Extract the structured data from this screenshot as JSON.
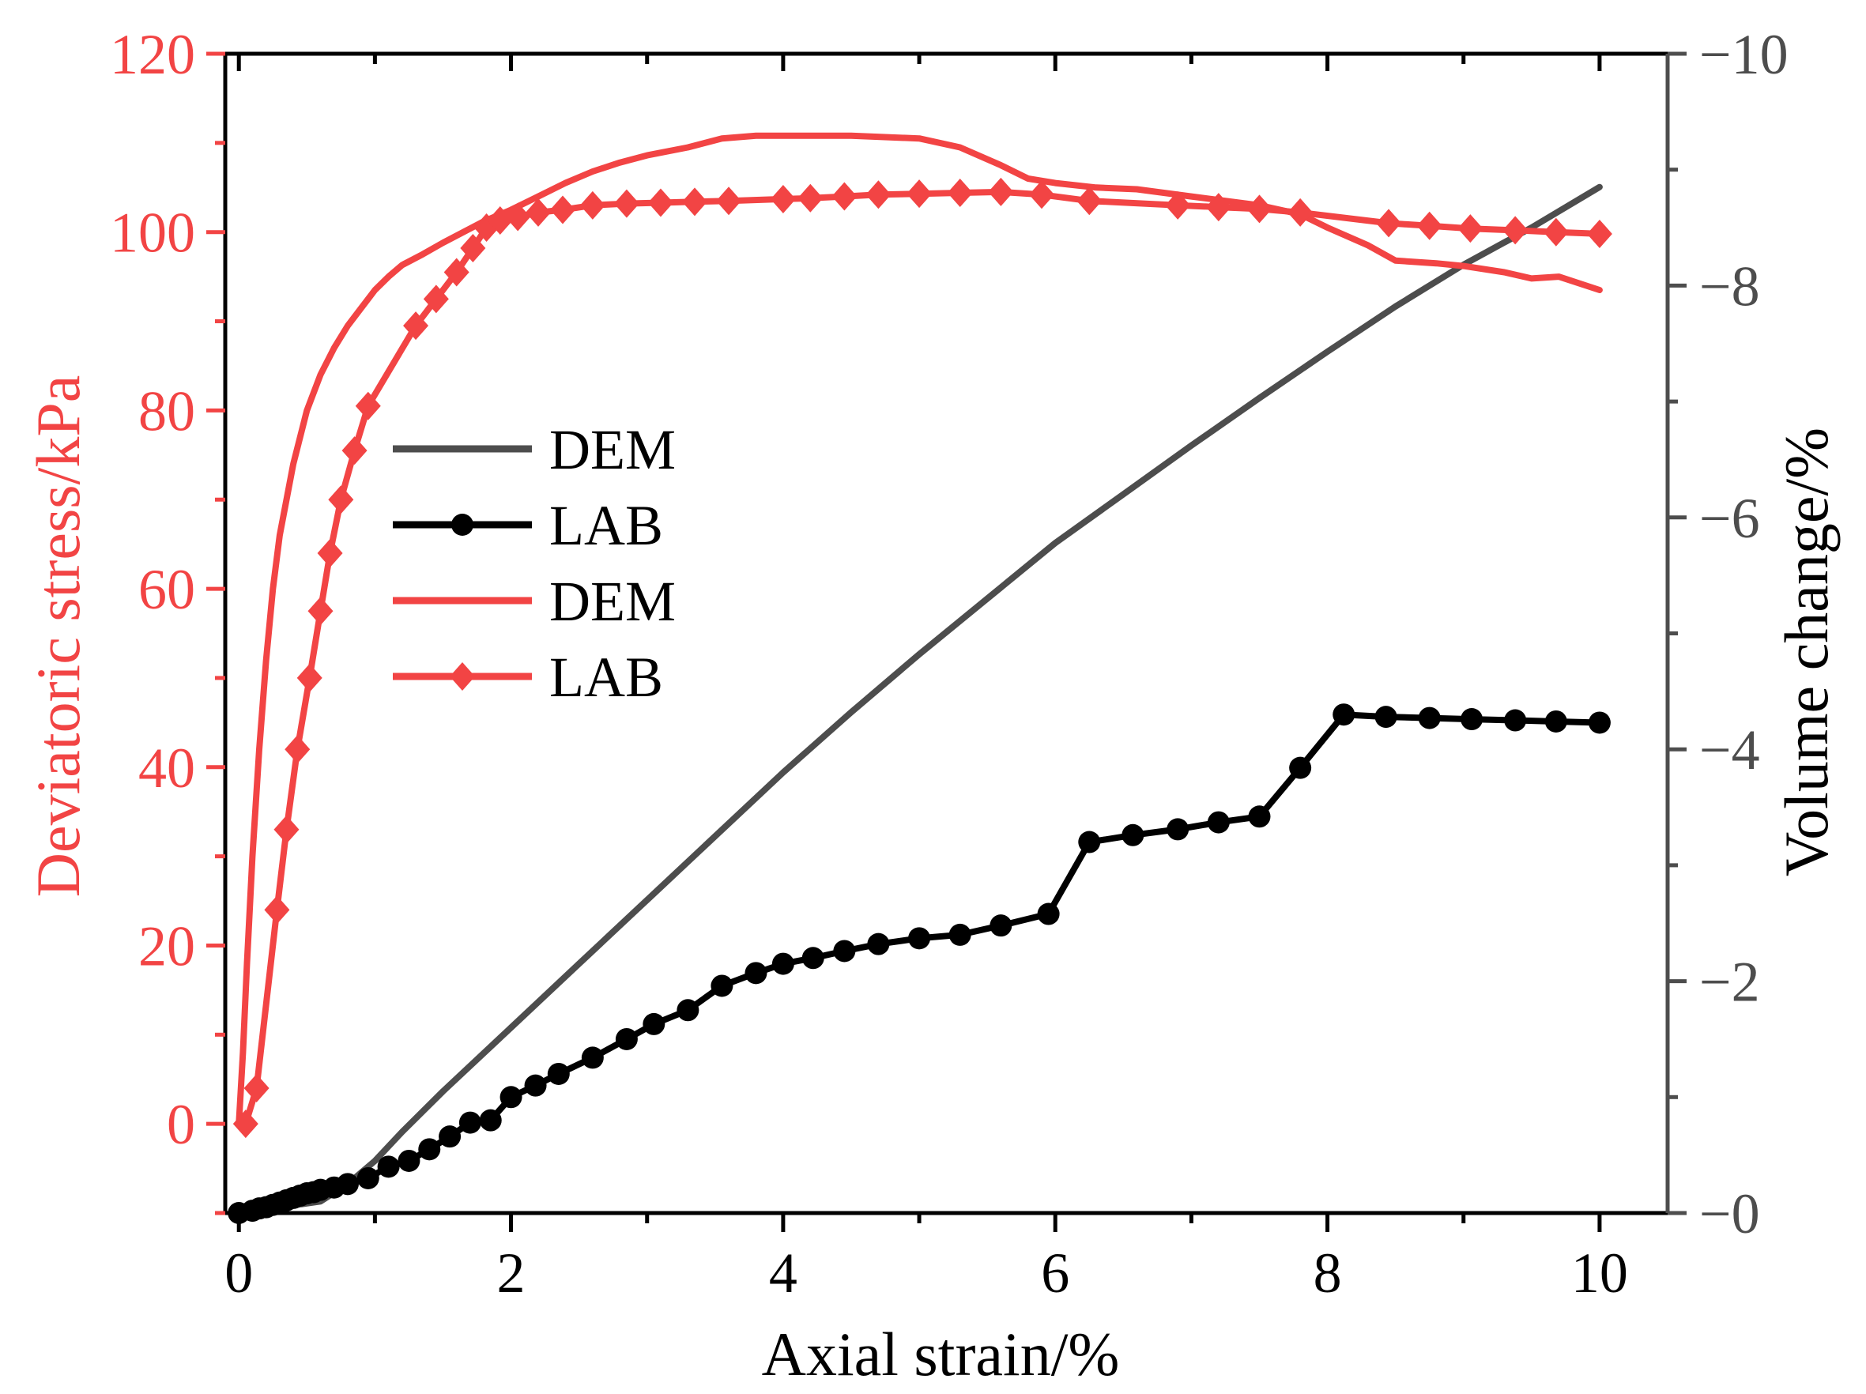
{
  "colors": {
    "stress": "#f24444",
    "volume_dem": "#4d4d4d",
    "volume_lab": "#000000",
    "axis_right": "#4d4d4d",
    "axis": "#000000"
  },
  "chart_data": {
    "type": "line",
    "xlabel": "Axial strain/%",
    "ylabel_left": "Deviatoric stress/kPa",
    "ylabel_right": "Volume change/%",
    "xlim": [
      -0.1,
      10.5
    ],
    "ylim_left": [
      -10,
      120
    ],
    "ylim_right": [
      0,
      -10
    ],
    "xticks": [
      0,
      2,
      4,
      6,
      8,
      10
    ],
    "xtick_labels": [
      "0",
      "2",
      "4",
      "6",
      "8",
      "10"
    ],
    "yticks_left": [
      0,
      20,
      40,
      60,
      80,
      100,
      120
    ],
    "ytick_labels_left": [
      "0",
      "20",
      "40",
      "60",
      "80",
      "100",
      "120"
    ],
    "yticks_right": [
      0,
      -2,
      -4,
      -6,
      -8,
      -10
    ],
    "ytick_labels_right": [
      "−0",
      "−2",
      "−4",
      "−6",
      "−8",
      "−10"
    ],
    "legend": {
      "position": "center-left",
      "entries": [
        "DEM",
        "LAB",
        "DEM",
        "LAB"
      ]
    },
    "series": [
      {
        "name": "DEM",
        "axis": "right",
        "marker": "none",
        "color": "#4d4d4d",
        "x": [
          0,
          0.6,
          0.8,
          1.0,
          1.2,
          1.5,
          2.0,
          2.5,
          3.0,
          3.5,
          4.0,
          4.5,
          5.0,
          5.5,
          6.0,
          6.5,
          7.0,
          7.5,
          8.0,
          8.5,
          9.0,
          9.5,
          10.0
        ],
        "y": [
          0,
          -0.1,
          -0.25,
          -0.45,
          -0.7,
          -1.05,
          -1.6,
          -2.15,
          -2.7,
          -3.25,
          -3.8,
          -4.32,
          -4.82,
          -5.3,
          -5.78,
          -6.2,
          -6.62,
          -7.03,
          -7.43,
          -7.82,
          -8.18,
          -8.5,
          -8.85
        ]
      },
      {
        "name": "LAB",
        "axis": "right",
        "marker": "circle",
        "color": "#000000",
        "x": [
          0,
          0.1,
          0.15,
          0.2,
          0.25,
          0.3,
          0.35,
          0.4,
          0.45,
          0.5,
          0.55,
          0.6,
          0.7,
          0.8,
          0.95,
          1.1,
          1.25,
          1.4,
          1.55,
          1.7,
          1.85,
          2.0,
          2.18,
          2.35,
          2.6,
          2.85,
          3.05,
          3.3,
          3.55,
          3.8,
          4.0,
          4.22,
          4.45,
          4.7,
          5.0,
          5.3,
          5.6,
          5.95,
          6.25,
          6.57,
          6.9,
          7.2,
          7.5,
          7.8,
          8.12,
          8.43,
          8.75,
          9.06,
          9.38,
          9.68,
          10.0
        ],
        "y": [
          0,
          -0.02,
          -0.04,
          -0.05,
          -0.07,
          -0.09,
          -0.11,
          -0.13,
          -0.15,
          -0.17,
          -0.18,
          -0.2,
          -0.22,
          -0.25,
          -0.3,
          -0.4,
          -0.45,
          -0.55,
          -0.66,
          -0.78,
          -0.8,
          -1.0,
          -1.1,
          -1.2,
          -1.34,
          -1.5,
          -1.63,
          -1.75,
          -1.96,
          -2.07,
          -2.15,
          -2.2,
          -2.26,
          -2.32,
          -2.37,
          -2.4,
          -2.48,
          -2.58,
          -3.2,
          -3.26,
          -3.31,
          -3.37,
          -3.42,
          -3.84,
          -4.3,
          -4.28,
          -4.27,
          -4.26,
          -4.25,
          -4.24,
          -4.23
        ]
      },
      {
        "name": "DEM",
        "axis": "left",
        "marker": "none",
        "color": "#f24444",
        "x": [
          0,
          0.03,
          0.06,
          0.1,
          0.15,
          0.2,
          0.25,
          0.3,
          0.4,
          0.5,
          0.6,
          0.7,
          0.8,
          0.9,
          1.0,
          1.1,
          1.2,
          1.35,
          1.5,
          1.65,
          1.8,
          2.0,
          2.2,
          2.4,
          2.6,
          2.8,
          3.0,
          3.3,
          3.55,
          3.8,
          4.0,
          4.5,
          5.0,
          5.3,
          5.6,
          5.8,
          6.0,
          6.3,
          6.6,
          7.0,
          7.5,
          7.8,
          8.0,
          8.3,
          8.5,
          8.8,
          9.0,
          9.3,
          9.5,
          9.7,
          10.0
        ],
        "y": [
          0,
          8,
          18,
          30,
          42,
          52,
          60,
          66,
          74,
          80,
          84,
          87,
          89.5,
          91.5,
          93.5,
          95,
          96.3,
          97.5,
          98.8,
          100,
          101.2,
          102.5,
          104,
          105.5,
          106.8,
          107.8,
          108.6,
          109.5,
          110.5,
          110.8,
          110.8,
          110.8,
          110.5,
          109.5,
          107.5,
          106,
          105.5,
          105,
          104.8,
          104,
          103,
          102,
          100.5,
          98.5,
          96.8,
          96.5,
          96.2,
          95.5,
          94.8,
          95,
          93.5
        ]
      },
      {
        "name": "LAB",
        "axis": "left",
        "marker": "diamond",
        "color": "#f24444",
        "x": [
          0.05,
          0.13,
          0.28,
          0.35,
          0.43,
          0.52,
          0.6,
          0.67,
          0.75,
          0.85,
          0.95,
          1.3,
          1.45,
          1.6,
          1.72,
          1.82,
          1.92,
          2.05,
          2.2,
          2.38,
          2.6,
          2.85,
          3.1,
          3.35,
          3.6,
          4.0,
          4.2,
          4.45,
          4.7,
          5.0,
          5.3,
          5.6,
          5.9,
          6.25,
          6.9,
          7.2,
          7.5,
          7.8,
          8.45,
          8.75,
          9.05,
          9.38,
          9.68,
          10.0
        ],
        "y": [
          0,
          4,
          24,
          33,
          42,
          50,
          57.5,
          64,
          70,
          75.5,
          80.5,
          89.5,
          92.5,
          95.5,
          98.2,
          100.5,
          101.3,
          101.7,
          102.2,
          102.5,
          103,
          103.2,
          103.3,
          103.4,
          103.5,
          103.7,
          103.8,
          104,
          104.2,
          104.3,
          104.4,
          104.5,
          104.2,
          103.5,
          103,
          102.8,
          102.6,
          102.2,
          101,
          100.7,
          100.4,
          100.2,
          100,
          99.8
        ]
      }
    ]
  }
}
